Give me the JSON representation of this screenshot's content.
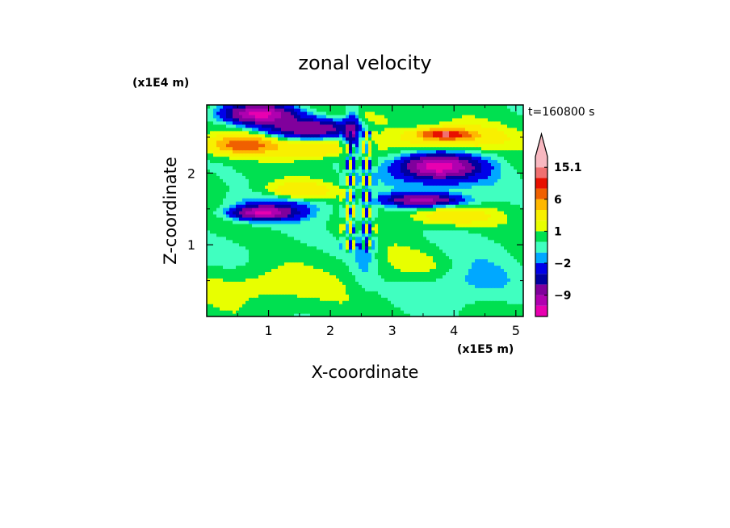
{
  "chart_data": {
    "type": "heatmap",
    "title": "zonal velocity",
    "xlabel": "X-coordinate",
    "ylabel": "Z-coordinate",
    "x_scale_label": "(x1E5 m)",
    "y_scale_label": "(x1E4 m)",
    "time_label": "t=160800 s",
    "xlim": [
      0,
      5.12
    ],
    "ylim": [
      0,
      2.95
    ],
    "x_ticks": [
      1,
      2,
      3,
      4,
      5
    ],
    "y_ticks": [
      1,
      2
    ],
    "grid": false,
    "colorbar": {
      "placement": "right",
      "levels": [
        -15,
        -12,
        -9,
        -6,
        -4,
        -2,
        -1,
        0,
        1,
        2,
        4,
        6,
        9,
        12,
        15.1
      ],
      "colors": [
        "#e800b0",
        "#b000b0",
        "#80009c",
        "#0000a0",
        "#0000e8",
        "#00a8ff",
        "#40ffc0",
        "#00e050",
        "#e8ff00",
        "#f8f000",
        "#ffb800",
        "#f06000",
        "#e81000",
        "#f07070",
        "#f8b8c0"
      ],
      "labels": [
        {
          "value": 15.1,
          "text": "15.1"
        },
        {
          "value": 6,
          "text": "6"
        },
        {
          "value": 1,
          "text": "1"
        },
        {
          "value": -2,
          "text": "−2"
        },
        {
          "value": -9,
          "text": "−9"
        }
      ],
      "extend": "max"
    },
    "features": [
      {
        "x": 0.85,
        "z": 2.83,
        "sx": 0.55,
        "sz": 0.13,
        "v": -13
      },
      {
        "x": 1.7,
        "z": 2.63,
        "sx": 0.7,
        "sz": 0.13,
        "v": -9
      },
      {
        "x": 2.35,
        "z": 2.55,
        "sx": 0.12,
        "sz": 0.3,
        "v": -6
      },
      {
        "x": 3.75,
        "z": 2.1,
        "sx": 0.55,
        "sz": 0.15,
        "v": -12
      },
      {
        "x": 3.75,
        "z": 2.0,
        "sx": 0.9,
        "sz": 0.28,
        "v": -3
      },
      {
        "x": 3.5,
        "z": 1.63,
        "sx": 0.6,
        "sz": 0.08,
        "v": -10
      },
      {
        "x": 0.9,
        "z": 1.45,
        "sx": 0.45,
        "sz": 0.09,
        "v": -11
      },
      {
        "x": 1.2,
        "z": 1.55,
        "sx": 0.75,
        "sz": 0.2,
        "v": -3
      },
      {
        "x": 2.55,
        "z": 1.0,
        "sx": 0.18,
        "sz": 0.5,
        "v": -2
      },
      {
        "x": 4.1,
        "z": 0.5,
        "sx": 0.9,
        "sz": 0.35,
        "v": -2
      },
      {
        "x": 0.6,
        "z": 0.95,
        "sx": 0.9,
        "sz": 0.35,
        "v": -0.6
      },
      {
        "x": 4.3,
        "z": 1.0,
        "sx": 0.8,
        "sz": 0.25,
        "v": -0.6
      },
      {
        "x": 0.6,
        "z": 2.4,
        "sx": 0.55,
        "sz": 0.13,
        "v": 7
      },
      {
        "x": 1.8,
        "z": 2.35,
        "sx": 0.6,
        "sz": 0.12,
        "v": 4
      },
      {
        "x": 1.45,
        "z": 1.75,
        "sx": 0.55,
        "sz": 0.12,
        "v": 4
      },
      {
        "x": 3.85,
        "z": 2.55,
        "sx": 0.35,
        "sz": 0.06,
        "v": 10
      },
      {
        "x": 3.95,
        "z": 2.5,
        "sx": 0.85,
        "sz": 0.16,
        "v": 4
      },
      {
        "x": 3.95,
        "z": 1.4,
        "sx": 0.65,
        "sz": 0.12,
        "v": 3
      },
      {
        "x": 3.5,
        "z": 0.7,
        "sx": 0.7,
        "sz": 0.25,
        "v": 1.5
      },
      {
        "x": 2.7,
        "z": 2.75,
        "sx": 0.5,
        "sz": 0.15,
        "v": 1.2
      },
      {
        "x": 1.0,
        "z": 0.45,
        "sx": 1.0,
        "sz": 0.25,
        "v": 1.5
      }
    ]
  }
}
